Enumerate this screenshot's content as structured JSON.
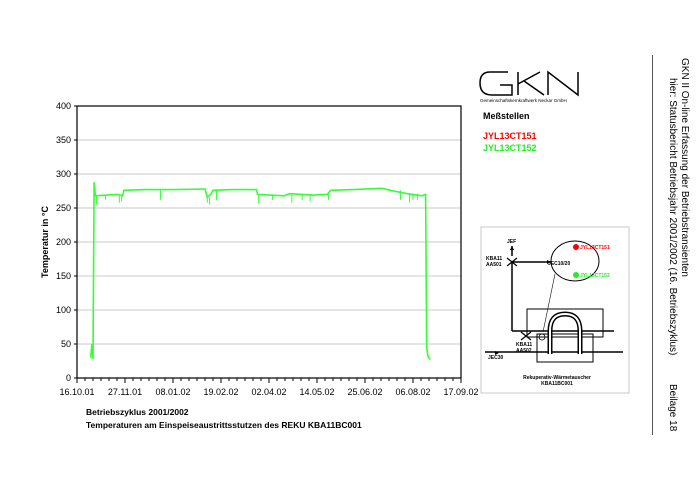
{
  "header": {
    "title_line1": "GKN II  On-line Erfassung der Betriebstransienten",
    "title_line2": "hier: Statusbericht Betriebsjahr 2001/2002 (16. Betriebszyklus)",
    "attachment": "Beilage 18"
  },
  "logo": {
    "letters": "GKN",
    "subtitle": "Gemeinschaftskernkraftwerk Neckar GmbH"
  },
  "legend": {
    "title": "Meßstellen",
    "items": [
      {
        "label": "JYL13CT151",
        "color": "#ff0000"
      },
      {
        "label": "JYL13CT152",
        "color": "#00ee00"
      }
    ]
  },
  "captions": {
    "line1": "Betriebszyklus 2001/2002",
    "line2": "Temperaturen am Einspeiseaustrittsstutzen des REKU KBA11BC001"
  },
  "diagram": {
    "labels": {
      "jef": "JEF",
      "valve1": "KBA11\nAA501",
      "jec1020": "JEC10/20",
      "valve2": "KBA11\nAA502",
      "jec30": "JEC30",
      "sensor1": "JYL13CT151",
      "sensor2": "JYL13CT152",
      "title1": "Rekuperativ-Wärmetauscher",
      "title2": "KBA11BC001"
    }
  },
  "chart_data": {
    "type": "line",
    "title": "",
    "xlabel": "",
    "ylabel": "Temperatur in °C",
    "ylim": [
      0,
      400
    ],
    "yticks": [
      0,
      50,
      100,
      150,
      200,
      250,
      300,
      350,
      400
    ],
    "xticks": [
      "16.10.01",
      "27.11.01",
      "08.01.02",
      "19.02.02",
      "02.04.02",
      "14.05.02",
      "25.06.02",
      "06.08.02",
      "17.09.02"
    ],
    "grid": true,
    "series": [
      {
        "name": "JYL13CT152",
        "color": "#33ff33",
        "points": [
          [
            "28.10.01",
            30
          ],
          [
            "29.10.01",
            50
          ],
          [
            "30.10.01",
            28
          ],
          [
            "31.10.01",
            288
          ],
          [
            "01.11.01",
            268
          ],
          [
            "20.11.01",
            270
          ],
          [
            "25.11.01",
            268
          ],
          [
            "26.11.01",
            276
          ],
          [
            "15.12.01",
            277
          ],
          [
            "10.01.02",
            277
          ],
          [
            "05.02.02",
            278
          ],
          [
            "07.02.02",
            266
          ],
          [
            "10.02.02",
            270
          ],
          [
            "12.02.02",
            276
          ],
          [
            "01.03.02",
            277
          ],
          [
            "22.03.02",
            277
          ],
          [
            "23.03.02",
            270
          ],
          [
            "15.04.02",
            268
          ],
          [
            "20.04.02",
            271
          ],
          [
            "10.05.02",
            269
          ],
          [
            "23.05.02",
            270
          ],
          [
            "26.05.02",
            276
          ],
          [
            "15.06.02",
            277
          ],
          [
            "10.07.02",
            279
          ],
          [
            "17.07.02",
            276
          ],
          [
            "01.08.02",
            271
          ],
          [
            "14.08.02",
            268
          ],
          [
            "17.08.02",
            270
          ],
          [
            "18.08.02",
            45
          ],
          [
            "19.08.02",
            32
          ],
          [
            "21.08.02",
            27
          ]
        ],
        "dips": [
          [
            "02.11.01",
            255
          ],
          [
            "10.11.01",
            262
          ],
          [
            "22.11.01",
            258
          ],
          [
            "24.11.01",
            260
          ],
          [
            "28.12.01",
            262
          ],
          [
            "07.02.02",
            258
          ],
          [
            "09.02.02",
            255
          ],
          [
            "15.02.02",
            262
          ],
          [
            "24.03.02",
            256
          ],
          [
            "05.04.02",
            262
          ],
          [
            "22.04.02",
            258
          ],
          [
            "01.05.02",
            262
          ],
          [
            "08.05.02",
            260
          ],
          [
            "24.05.02",
            262
          ],
          [
            "26.07.02",
            262
          ],
          [
            "03.08.02",
            258
          ],
          [
            "06.08.02",
            262
          ],
          [
            "10.08.02",
            262
          ]
        ]
      }
    ]
  }
}
